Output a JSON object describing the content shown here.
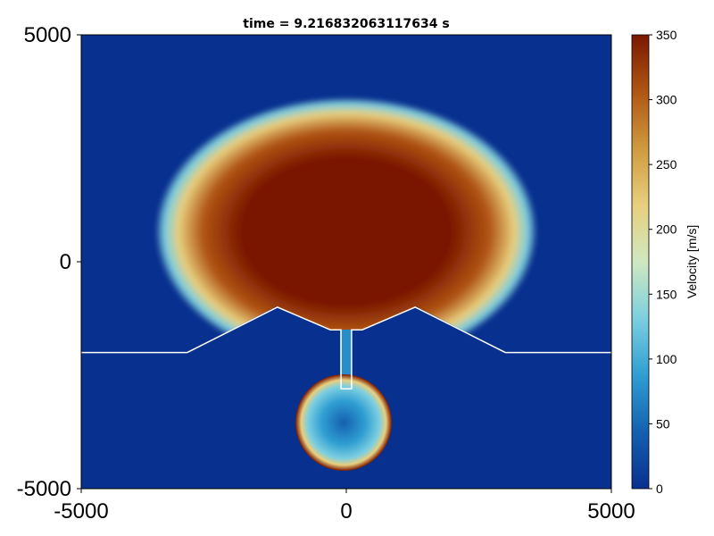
{
  "chart_data": {
    "type": "heatmap",
    "title": "time = 9.216832063117634 s",
    "xlim": [
      -5000,
      5000
    ],
    "ylim": [
      -5000,
      5000
    ],
    "x_ticks": [
      -5000,
      0,
      5000
    ],
    "y_ticks": [
      -5000,
      0,
      5000
    ],
    "x_tick_labels": [
      "-5000",
      "0",
      "5000"
    ],
    "y_tick_labels": [
      "-5000",
      "0",
      "5000"
    ],
    "colorbar": {
      "label": "Velocity [m/s]",
      "range": [
        0,
        350
      ],
      "ticks": [
        0,
        50,
        100,
        150,
        200,
        250,
        300,
        350
      ],
      "tick_labels": [
        "0",
        "50",
        "100",
        "150",
        "200",
        "250",
        "300",
        "350"
      ],
      "colormap": [
        "#08308f",
        "#1560b0",
        "#2f9ed2",
        "#7dcfe0",
        "#cfe8c0",
        "#e8cf7e",
        "#cf9a3e",
        "#b05514",
        "#7a1800"
      ]
    },
    "boundary_polyline": [
      [
        -5000,
        -2000
      ],
      [
        -3000,
        -2000
      ],
      [
        -1300,
        -1000
      ],
      [
        -300,
        -1500
      ],
      [
        -100,
        -1500
      ],
      [
        -100,
        -2800
      ],
      [
        100,
        -2800
      ],
      [
        100,
        -1500
      ],
      [
        300,
        -1500
      ],
      [
        1300,
        -1000
      ],
      [
        3000,
        -2000
      ],
      [
        5000,
        -2000
      ]
    ],
    "features": [
      {
        "name": "upper plume",
        "center": [
          0,
          600
        ],
        "radii": [
          3600,
          2950
        ],
        "peak_velocity": 350
      },
      {
        "name": "lower chamber",
        "center": [
          -50,
          -3550
        ],
        "radius": 900,
        "core_velocity": 50,
        "rim_velocity": 350
      }
    ],
    "background_velocity": 5
  }
}
